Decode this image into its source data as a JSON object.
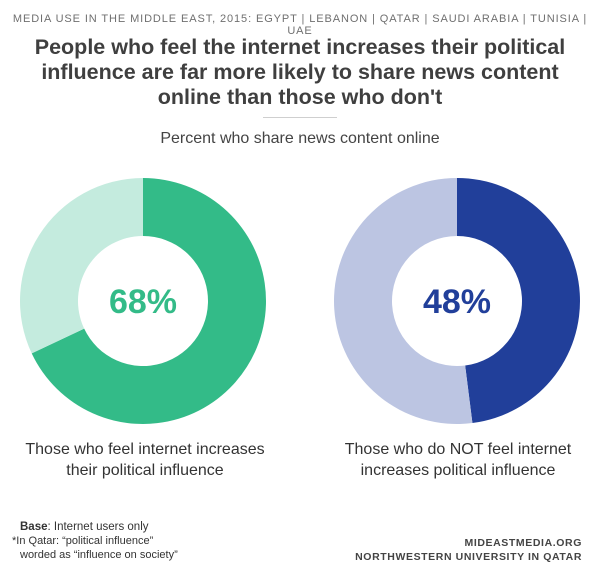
{
  "header": {
    "kicker": "MEDIA USE IN THE MIDDLE EAST, 2015: EGYPT | LEBANON | QATAR | SAUDI ARABIA | TUNISIA | UAE",
    "title_lines": [
      "People who feel the internet increases their political",
      "influence are far more likely to share news content",
      "online than those who don't"
    ],
    "subtitle": "Percent who share news content online"
  },
  "chart_data": [
    {
      "type": "pie",
      "donut": true,
      "center_label": "68%",
      "values": [
        68,
        32
      ],
      "colors": [
        "#33bb88",
        "#c4ebde"
      ],
      "category_lines": [
        "Those who feel internet increases",
        "their political influence"
      ],
      "label_color": "#33bb88"
    },
    {
      "type": "pie",
      "donut": true,
      "center_label": "48%",
      "values": [
        48,
        52
      ],
      "colors": [
        "#213f9a",
        "#bcc5e2"
      ],
      "category_lines": [
        "Those who do NOT feel internet",
        "increases political influence"
      ],
      "label_color": "#213f9a"
    }
  ],
  "footer": {
    "base_label": "Base",
    "base_text": ": Internet users only",
    "note_lines": [
      "*In Qatar: “political influence”",
      "worded as “influence on society”"
    ],
    "credit_lines": [
      "MIDEASTMEDIA.ORG",
      "NORTHWESTERN UNIVERSITY IN QATAR"
    ]
  }
}
